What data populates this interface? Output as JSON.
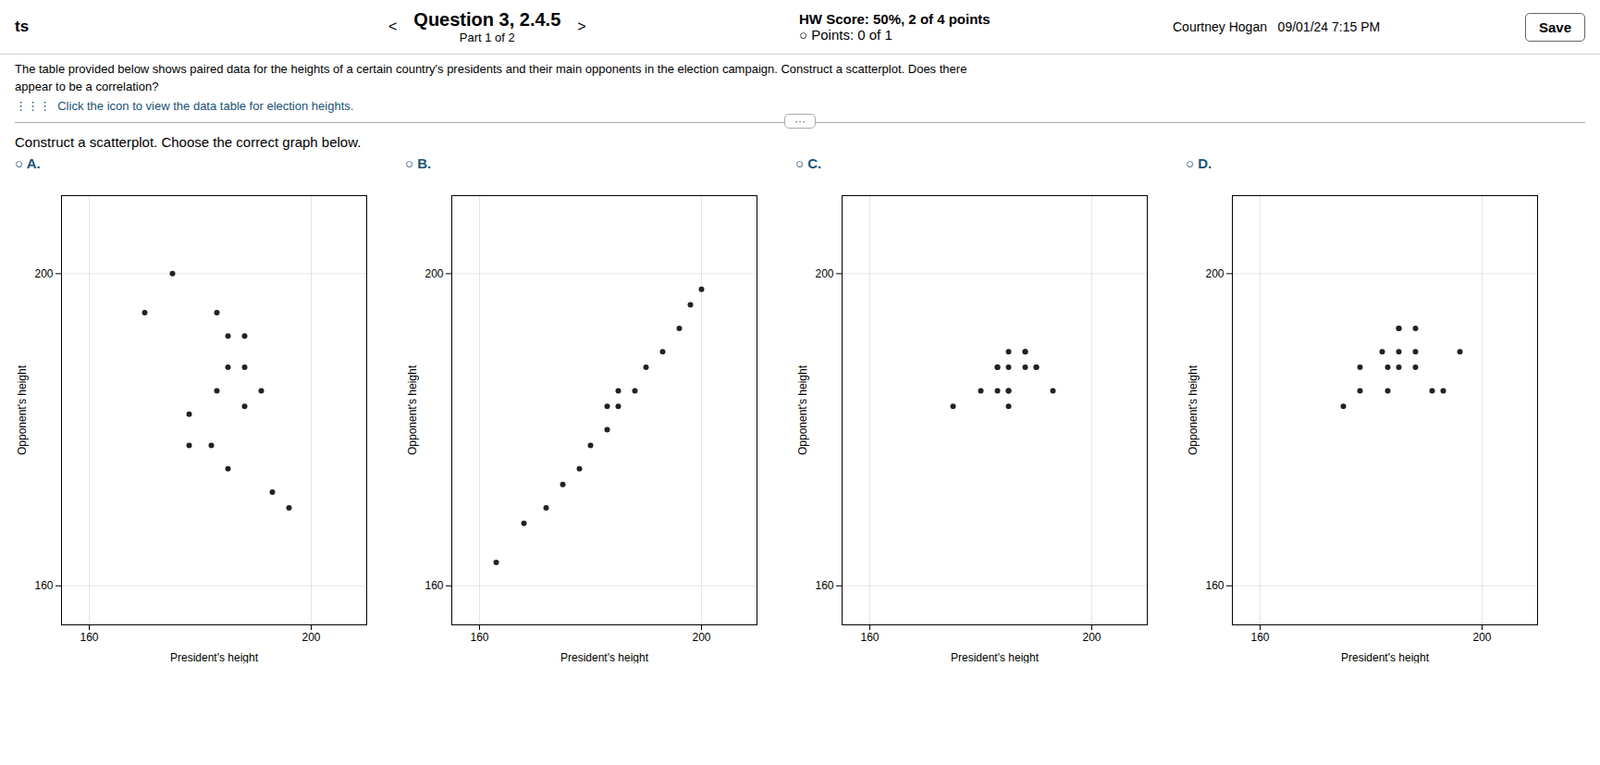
{
  "title": "Question 3, 2.4.5",
  "subtitle": "Part 1 of 2",
  "annotations": [
    "ts",
    "<",
    ">",
    "HW Score: 50%, 2 of 4 points",
    "○  Points: 0 of 1",
    "Courtney Hogan   09/01/24 7:15 PM",
    "Save",
    "The table provided below shows paired data for the heights of a certain country's presidents and their main opponents in the election campaign. Construct a scatterplot. Does there",
    "appear to be a correlation?",
    "⋮⋮⋮  Click the icon to view the data table for election heights.",
    "···",
    "Construct a scatterplot. Choose the correct graph below."
  ],
  "chart_data": [
    {
      "type": "scatter",
      "title": "○ A.",
      "xlabel": "President's height",
      "ylabel": "Opponent's height",
      "x": [
        175,
        183,
        188,
        188,
        191,
        178,
        182,
        185,
        193,
        196,
        170,
        185,
        188,
        178,
        185,
        183
      ],
      "values": [
        200,
        195,
        192,
        188,
        185,
        182,
        178,
        175,
        172,
        170,
        195,
        188,
        183,
        178,
        192,
        185
      ],
      "color": "#222222",
      "xlim": [
        155,
        210
      ],
      "ylim": [
        155,
        210
      ],
      "xticks": [
        160,
        200
      ],
      "yticks": [
        160,
        200
      ],
      "grid": true
    },
    {
      "type": "scatter",
      "title": "○ B.",
      "xlabel": "President's height",
      "ylabel": "Opponent's height",
      "x": [
        163,
        168,
        172,
        175,
        178,
        180,
        183,
        185,
        188,
        190,
        193,
        196,
        198,
        200,
        185,
        183
      ],
      "values": [
        163,
        168,
        170,
        173,
        175,
        178,
        180,
        183,
        185,
        188,
        190,
        193,
        196,
        198,
        185,
        183
      ],
      "color": "#222222",
      "xlim": [
        155,
        210
      ],
      "ylim": [
        155,
        210
      ],
      "xticks": [
        160,
        200
      ],
      "yticks": [
        160,
        200
      ],
      "grid": true
    },
    {
      "type": "scatter",
      "title": "○ C.",
      "xlabel": "President's height",
      "ylabel": "Opponent's height",
      "x": [
        175,
        183,
        185,
        188,
        188,
        185,
        183,
        190,
        185,
        185,
        188,
        190,
        193,
        185,
        183,
        180
      ],
      "values": [
        183,
        185,
        188,
        188,
        190,
        185,
        188,
        188,
        190,
        185,
        190,
        188,
        185,
        183,
        188,
        185
      ],
      "color": "#222222",
      "xlim": [
        155,
        210
      ],
      "ylim": [
        155,
        210
      ],
      "xticks": [
        160,
        200
      ],
      "yticks": [
        160,
        200
      ],
      "grid": true
    },
    {
      "type": "scatter",
      "title": "○ D.",
      "xlabel": "President's height",
      "ylabel": "Opponent's height",
      "x": [
        175,
        183,
        188,
        188,
        191,
        178,
        182,
        185,
        193,
        196,
        185,
        185,
        188,
        178,
        185,
        183
      ],
      "values": [
        183,
        188,
        190,
        193,
        185,
        188,
        190,
        193,
        185,
        190,
        188,
        193,
        188,
        185,
        190,
        185
      ],
      "color": "#222222",
      "xlim": [
        155,
        210
      ],
      "ylim": [
        155,
        210
      ],
      "xticks": [
        160,
        200
      ],
      "yticks": [
        160,
        200
      ],
      "grid": true
    }
  ]
}
